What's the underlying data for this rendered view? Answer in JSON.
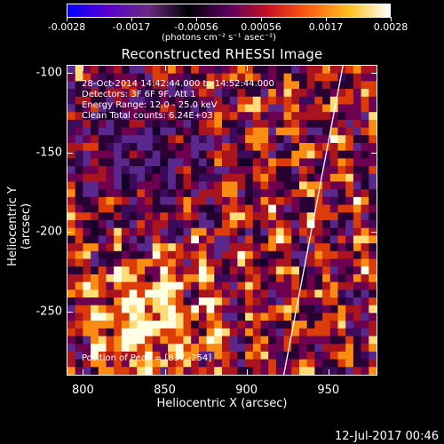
{
  "colorbar": {
    "ticks": [
      "-0.0028",
      "-0.0017",
      "-0.00056",
      "0.00056",
      "0.0017",
      "0.0028"
    ],
    "unit_label": "(photons cm⁻² s⁻¹ asec⁻²)",
    "gradient": [
      "#0000ff",
      "#5a00d0",
      "#6a2a80",
      "#000000",
      "#5a0060",
      "#cc1020",
      "#ff6010",
      "#ffc020",
      "#ffffff"
    ]
  },
  "title": "Reconstructed RHESSI Image",
  "annotations": {
    "time_range": "28-Oct-2014 14:42:44.000 to 14:52:44.000",
    "detectors": "Detectors: 3F 6F 9F, Att 1",
    "energy": "Energy Range: 12.0 - 25.0 keV",
    "clean": "Clean     Total counts: 6.24E+03",
    "peak": "Position of Peak = [837,-254]"
  },
  "axes": {
    "xlabel": "Heliocentric X (arcsec)",
    "ylabel": "Heliocentric Y (arcsec)",
    "xticks": [
      "800",
      "850",
      "900",
      "950"
    ],
    "yticks": [
      "-100",
      "-150",
      "-200",
      "-250"
    ],
    "xlim": [
      790,
      980
    ],
    "ylim": [
      -290,
      -95
    ]
  },
  "timestamp": "12-Jul-2017 00:46",
  "limb_color": "#ffffff"
}
